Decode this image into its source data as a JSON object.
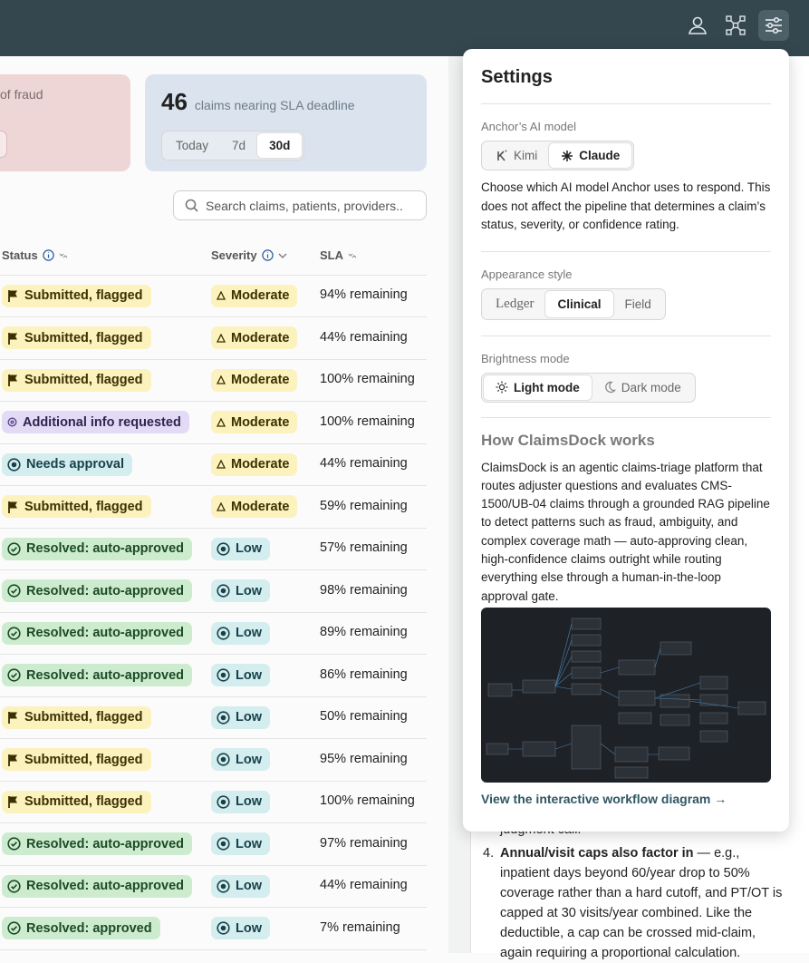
{
  "fraud_card": {
    "label": "of fraud"
  },
  "sla_card": {
    "count": "46",
    "label": "claims nearing SLA deadline",
    "ranges": [
      "Today",
      "7d",
      "30d"
    ],
    "selected": 2
  },
  "search": {
    "placeholder": "Search claims, patients, providers.."
  },
  "table": {
    "columns": [
      "Status",
      "Severity",
      "SLA"
    ],
    "rows": [
      {
        "status": "Submitted, flagged",
        "status_tone": "yellow",
        "severity": "Moderate",
        "severity_tone": "yellow",
        "sla": "94% remaining"
      },
      {
        "status": "Submitted, flagged",
        "status_tone": "yellow",
        "severity": "Moderate",
        "severity_tone": "yellow",
        "sla": "44% remaining"
      },
      {
        "status": "Submitted, flagged",
        "status_tone": "yellow",
        "severity": "Moderate",
        "severity_tone": "yellow",
        "sla": "100% remaining"
      },
      {
        "status": "Additional info requested",
        "status_tone": "purple",
        "severity": "Moderate",
        "severity_tone": "yellow",
        "sla": "100% remaining"
      },
      {
        "status": "Needs approval",
        "status_tone": "teal",
        "severity": "Moderate",
        "severity_tone": "yellow",
        "sla": "44% remaining"
      },
      {
        "status": "Submitted, flagged",
        "status_tone": "yellow",
        "severity": "Moderate",
        "severity_tone": "yellow",
        "sla": "59% remaining"
      },
      {
        "status": "Resolved: auto-approved",
        "status_tone": "green",
        "severity": "Low",
        "severity_tone": "teal",
        "sla": "57% remaining"
      },
      {
        "status": "Resolved: auto-approved",
        "status_tone": "green",
        "severity": "Low",
        "severity_tone": "teal",
        "sla": "98% remaining"
      },
      {
        "status": "Resolved: auto-approved",
        "status_tone": "green",
        "severity": "Low",
        "severity_tone": "teal",
        "sla": "89% remaining"
      },
      {
        "status": "Resolved: auto-approved",
        "status_tone": "green",
        "severity": "Low",
        "severity_tone": "teal",
        "sla": "86% remaining"
      },
      {
        "status": "Submitted, flagged",
        "status_tone": "yellow",
        "severity": "Low",
        "severity_tone": "teal",
        "sla": "50% remaining"
      },
      {
        "status": "Submitted, flagged",
        "status_tone": "yellow",
        "severity": "Low",
        "severity_tone": "teal",
        "sla": "95% remaining"
      },
      {
        "status": "Submitted, flagged",
        "status_tone": "yellow",
        "severity": "Low",
        "severity_tone": "teal",
        "sla": "100% remaining"
      },
      {
        "status": "Resolved: auto-approved",
        "status_tone": "green",
        "severity": "Low",
        "severity_tone": "teal",
        "sla": "97% remaining"
      },
      {
        "status": "Resolved: auto-approved",
        "status_tone": "green",
        "severity": "Low",
        "severity_tone": "teal",
        "sla": "44% remaining"
      },
      {
        "status": "Resolved: approved",
        "status_tone": "green",
        "severity": "Low",
        "severity_tone": "teal",
        "sla": "7% remaining"
      }
    ]
  },
  "document": {
    "partial_line": "judgment call.",
    "item_number": "4.",
    "item_lead": "Annual/visit caps also factor in",
    "item_text": " — e.g., inpatient days beyond 60/year drop to 50% coverage rather than a hard cutoff, and PT/OT is capped at 30 visits/year combined. Like the deductible, a cap can be crossed mid-claim, again requiring a proportional calculation."
  },
  "settings": {
    "title": "Settings",
    "model": {
      "label": "Anchor’s AI model",
      "options": [
        "Kimi",
        "Claude"
      ],
      "selected": 1,
      "description": "Choose which AI model Anchor uses to respond. This does not affect the pipeline that determines a claim’s status, severity, or confidence rating."
    },
    "appearance": {
      "label": "Appearance style",
      "options": [
        "Ledger",
        "Clinical",
        "Field"
      ],
      "selected": 1
    },
    "brightness": {
      "label": "Brightness mode",
      "options": [
        "Light mode",
        "Dark mode"
      ],
      "selected": 0
    },
    "about": {
      "heading": "How ClaimsDock works",
      "text": "ClaimsDock is an agentic claims-triage platform that routes adjuster questions and evaluates CMS-1500/UB-04 claims through a grounded RAG pipeline to detect patterns such as fraud, ambiguity, and complex coverage math — auto-approving clean, high-confidence claims outright while routing everything else through a human-in-the-loop approval gate.",
      "link": "View the interactive workflow diagram →"
    }
  }
}
